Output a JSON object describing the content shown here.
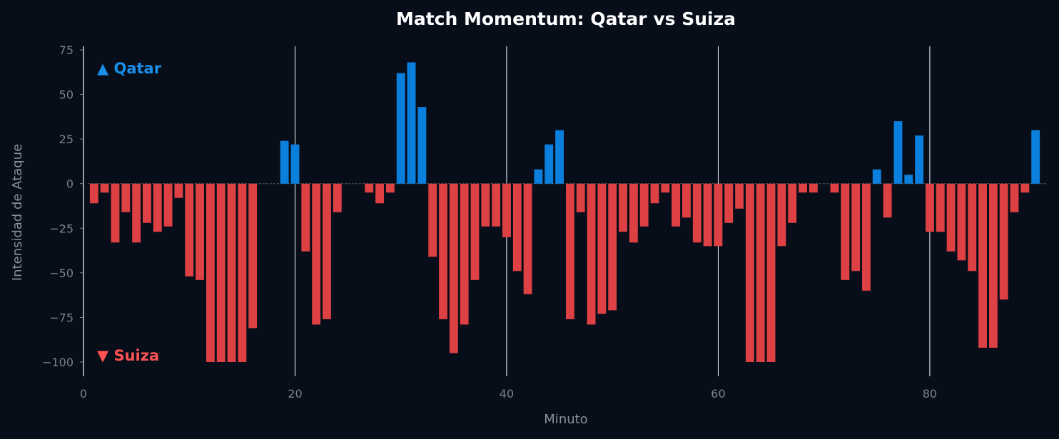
{
  "colors": {
    "background": "#070d19",
    "team_a": "#0a7fdd",
    "team_b": "#de4143",
    "legend_a": "#1a8fe9",
    "legend_b": "#ff5353",
    "title": "#ffffff",
    "axis_text": "#8a8f98",
    "tick_text": "#7d828c",
    "vline": "#ffffff",
    "zero_line": "#555a66"
  },
  "chart_data": {
    "type": "bar",
    "title": "Match Momentum: Qatar vs Suiza",
    "xlabel": "Minuto",
    "ylabel": "Intensidad de Ataque",
    "xlim": [
      0,
      91
    ],
    "ylim": [
      -108,
      77
    ],
    "xticks": [
      0,
      20,
      40,
      60,
      80
    ],
    "xtick_labels": [
      "0",
      "20",
      "40",
      "60",
      "80"
    ],
    "yticks": [
      75,
      50,
      25,
      0,
      -25,
      -50,
      -75,
      -100
    ],
    "ytick_labels": [
      "75",
      "50",
      "25",
      "0",
      "−25",
      "−50",
      "−75",
      "−100"
    ],
    "vertical_lines": [
      20,
      40,
      60,
      80
    ],
    "legend": {
      "positive": "▲ Qatar",
      "negative": "▼ Suiza"
    },
    "series": [
      {
        "name": "Qatar / Suiza",
        "x": [
          1,
          2,
          3,
          4,
          5,
          6,
          7,
          8,
          9,
          10,
          11,
          12,
          13,
          14,
          15,
          16,
          17,
          18,
          19,
          20,
          21,
          22,
          23,
          24,
          25,
          26,
          27,
          28,
          29,
          30,
          31,
          32,
          33,
          34,
          35,
          36,
          37,
          38,
          39,
          40,
          41,
          42,
          43,
          44,
          45,
          46,
          47,
          48,
          49,
          50,
          51,
          52,
          53,
          54,
          55,
          56,
          57,
          58,
          59,
          60,
          61,
          62,
          63,
          64,
          65,
          66,
          67,
          68,
          69,
          70,
          71,
          72,
          73,
          74,
          75,
          76,
          77,
          78,
          79,
          80,
          81,
          82,
          83,
          84,
          85,
          86,
          87,
          88,
          89,
          90
        ],
        "values": [
          -11,
          -5,
          -33,
          -16,
          -33,
          -22,
          -27,
          -24,
          -8,
          -52,
          -54,
          -100,
          -100,
          -100,
          -100,
          -81,
          0,
          0,
          24,
          22,
          -38,
          -79,
          -76,
          -16,
          0,
          0,
          -5,
          -11,
          -5,
          62,
          68,
          43,
          -41,
          -76,
          -95,
          -79,
          -54,
          -24,
          -24,
          -30,
          -49,
          -62,
          8,
          22,
          30,
          -76,
          -16,
          -79,
          -73,
          -71,
          -27,
          -33,
          -24,
          -11,
          -5,
          -24,
          -19,
          -33,
          -35,
          -35,
          -22,
          -14,
          -100,
          -100,
          -100,
          -35,
          -22,
          -5,
          -5,
          0,
          -5,
          -54,
          -49,
          -60,
          8,
          -19,
          35,
          5,
          27,
          -27,
          -27,
          -38,
          -43,
          -49,
          -92,
          -92,
          -65,
          -16,
          -5,
          30
        ]
      }
    ]
  }
}
